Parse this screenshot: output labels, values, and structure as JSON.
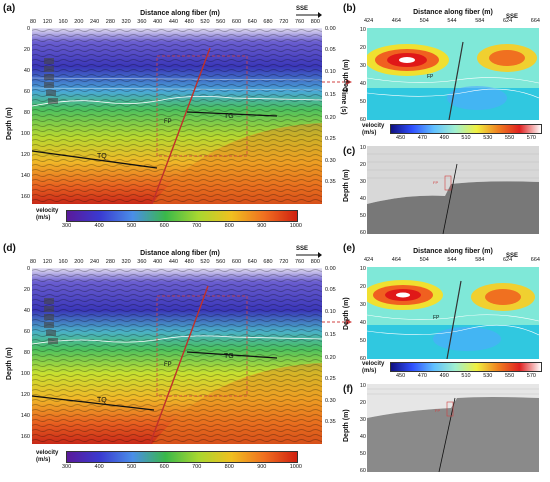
{
  "figure": {
    "panels": {
      "a": "(a)",
      "b": "(b)",
      "c": "(c)",
      "d": "(d)",
      "e": "(e)",
      "f": "(f)"
    },
    "left_header": "Distance  along fiber (m)",
    "right_header": "Distance  along fiber (m)",
    "direction": "SSE",
    "left_x_ticks": [
      "80",
      "120",
      "160",
      "200",
      "240",
      "280",
      "320",
      "360",
      "400",
      "440",
      "480",
      "520",
      "560",
      "600",
      "640",
      "680",
      "720",
      "760",
      "800"
    ],
    "left_depth_ticks": [
      "0",
      "20",
      "40",
      "60",
      "80",
      "100",
      "120",
      "140",
      "160"
    ],
    "time_ticks": [
      "0.00",
      "0.05",
      "0.10",
      "0.15",
      "0.20",
      "0.25",
      "0.30",
      "0.35"
    ],
    "depth_label": "Depth (m)",
    "time_label": "Time (s)",
    "right_x_ticks": [
      "424",
      "464",
      "504",
      "544",
      "584",
      "624",
      "664"
    ],
    "right_depth_ticks_top": [
      "10",
      "20",
      "30",
      "40",
      "50",
      "60"
    ],
    "right_depth_ticks_c": [
      "10",
      "20",
      "30",
      "40",
      "50",
      "60"
    ],
    "velocity_label_small": [
      "velocity",
      "(m/s)"
    ],
    "velocity_ticks_small": [
      "450",
      "470",
      "490",
      "510",
      "530",
      "550",
      "570"
    ],
    "velocity_label_big": [
      "velocity",
      "(m/s)"
    ],
    "velocity_ticks_big": [
      "300",
      "400",
      "500",
      "600",
      "700",
      "800",
      "900",
      "1000"
    ],
    "layer_tags": [
      "R1",
      "R2",
      "R3",
      "R4",
      "R5",
      "R6"
    ],
    "fault_labels": {
      "tq": "TQ",
      "fp": "FP",
      "tg": "TG"
    },
    "colors": {
      "velocity_scale": [
        "#1a0a80",
        "#3a3ad0",
        "#6a8ae8",
        "#9ad8e8",
        "#3ab84a",
        "#c8e020",
        "#f0c020",
        "#f07020",
        "#d02010",
        "#a00808"
      ],
      "fault": "#c0302a",
      "box": "#d04040",
      "horizon": "#111111"
    }
  }
}
